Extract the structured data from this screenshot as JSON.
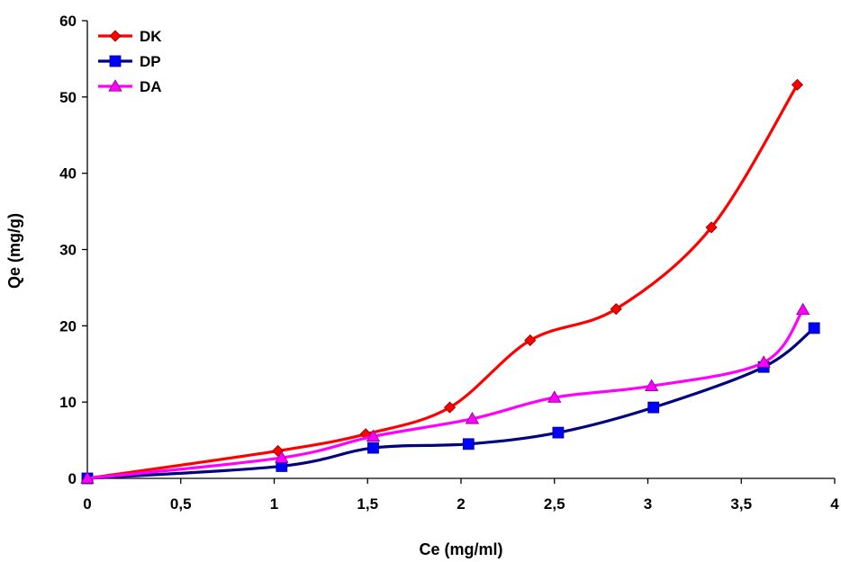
{
  "chart_data": {
    "type": "line",
    "title": "",
    "xlabel": "Ce (mg/ml)",
    "ylabel": "Qe (mg/g)",
    "xlim": [
      0,
      4
    ],
    "ylim": [
      0,
      60
    ],
    "x_ticks": [
      0,
      0.5,
      1,
      1.5,
      2,
      2.5,
      3,
      3.5,
      4
    ],
    "x_tick_labels": [
      "0",
      "0,5",
      "1",
      "1,5",
      "2",
      "2,5",
      "3",
      "3,5",
      "4"
    ],
    "y_ticks": [
      0,
      10,
      20,
      30,
      40,
      50,
      60
    ],
    "y_tick_labels": [
      "0",
      "10",
      "20",
      "30",
      "40",
      "50",
      "60"
    ],
    "grid": false,
    "legend_position": "top-left",
    "series": [
      {
        "name": "DK",
        "color": "#ff0000",
        "marker": "diamond",
        "x": [
          0,
          1.02,
          1.49,
          1.94,
          2.37,
          2.83,
          3.34,
          3.8
        ],
        "y": [
          0,
          3.6,
          5.8,
          9.3,
          18.1,
          22.2,
          32.9,
          51.6
        ]
      },
      {
        "name": "DP",
        "color": "#0000ff",
        "line_color": "#000080",
        "marker": "square",
        "x": [
          0,
          1.04,
          1.53,
          2.04,
          2.52,
          3.03,
          3.62,
          3.89
        ],
        "y": [
          0,
          1.6,
          4.0,
          4.5,
          6.0,
          9.3,
          14.6,
          19.7
        ]
      },
      {
        "name": "DA",
        "color": "#ff00ff",
        "marker": "triangle",
        "x": [
          0,
          1.04,
          1.53,
          2.06,
          2.5,
          3.02,
          3.62,
          3.83
        ],
        "y": [
          0,
          2.7,
          5.5,
          7.8,
          10.6,
          12.1,
          15.2,
          22.1
        ]
      }
    ]
  }
}
